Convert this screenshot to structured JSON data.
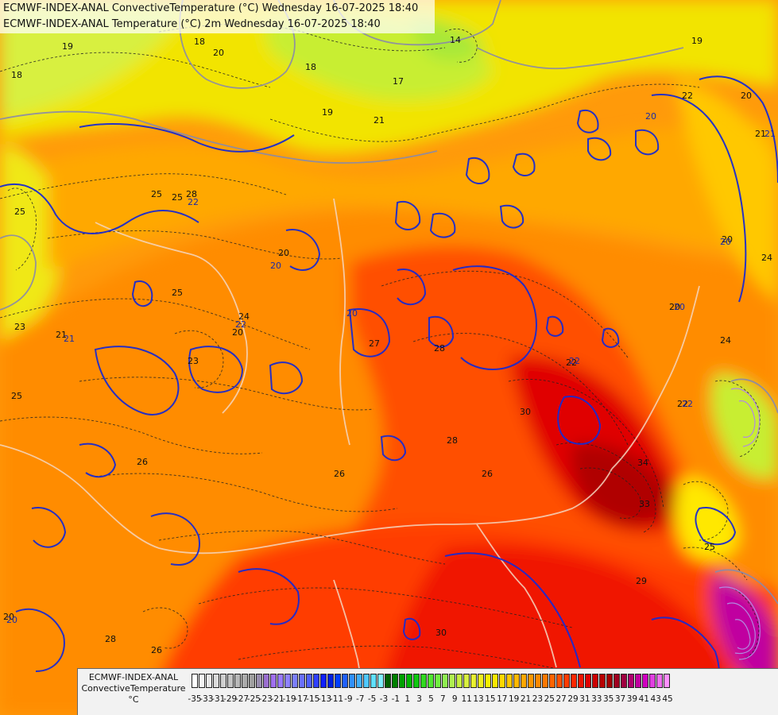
{
  "titles": {
    "line1": "ECMWF-INDEX-ANAL ConvectiveTemperature (°C) Wednesday 16-07-2025 18:40",
    "line2": "ECMWF-INDEX-ANAL Temperature (°C) 2m Wednesday 16-07-2025 18:40"
  },
  "legend": {
    "model": "ECMWF-INDEX-ANAL",
    "parameter": "ConvectiveTemperature",
    "unit": "°C",
    "tick_labels": [
      "-35",
      "-33",
      "-31",
      "-29",
      "-27",
      "-25",
      "-23",
      "-21",
      "-19",
      "-17",
      "-15",
      "-13",
      "-11",
      "-9",
      "-7",
      "-5",
      "-3",
      "-1",
      "1",
      "3",
      "5",
      "7",
      "9",
      "11",
      "13",
      "15",
      "17",
      "19",
      "21",
      "23",
      "25",
      "27",
      "29",
      "31",
      "33",
      "35",
      "37",
      "39",
      "41",
      "43",
      "45"
    ],
    "colors": [
      "#ffffff",
      "#f4f4f4",
      "#e8e8e8",
      "#dcdcdc",
      "#d0d0d0",
      "#c4c4c4",
      "#b8b8b8",
      "#acacac",
      "#a0a0a0",
      "#9a8fb0",
      "#9b6fd0",
      "#a070ee",
      "#9a7bff",
      "#8e82ff",
      "#7c80ff",
      "#6a70ff",
      "#5060ff",
      "#3040ff",
      "#1020ff",
      "#0020e0",
      "#0040ff",
      "#2060ff",
      "#3090ff",
      "#40b0ff",
      "#50c8ff",
      "#60e0ff",
      "#80f0ff",
      "#006000",
      "#008000",
      "#00a000",
      "#00b800",
      "#10c810",
      "#30d820",
      "#50e830",
      "#70f040",
      "#90f050",
      "#b0f050",
      "#c8f040",
      "#d8f040",
      "#e8f030",
      "#f0f020",
      "#f8f000",
      "#ffe800",
      "#ffd800",
      "#ffc800",
      "#ffb800",
      "#ffa800",
      "#ff9800",
      "#ff8800",
      "#ff7800",
      "#ff6400",
      "#ff5000",
      "#ff3c00",
      "#ff2800",
      "#f01400",
      "#e00000",
      "#cc0000",
      "#b80000",
      "#a40000",
      "#a00020",
      "#a00040",
      "#b00070",
      "#c000a0",
      "#d000c0",
      "#e040e0",
      "#f070f0",
      "#ff90ff"
    ]
  },
  "contour_labels": {
    "black": [
      "19",
      "18",
      "20",
      "19",
      "21",
      "22",
      "20",
      "18",
      "19",
      "17",
      "18",
      "14",
      "25",
      "25",
      "20",
      "24",
      "23",
      "23",
      "20",
      "21",
      "25",
      "26",
      "26",
      "27",
      "28",
      "28",
      "30",
      "26",
      "28",
      "30",
      "26",
      "34",
      "33",
      "25",
      "29",
      "28",
      "20",
      "22",
      "24",
      "21",
      "20",
      "24",
      "22",
      "25",
      "25",
      "20"
    ],
    "blue": [
      "20",
      "22",
      "20",
      "20",
      "20",
      "20",
      "22",
      "22",
      "21",
      "22",
      "21",
      "20"
    ]
  }
}
